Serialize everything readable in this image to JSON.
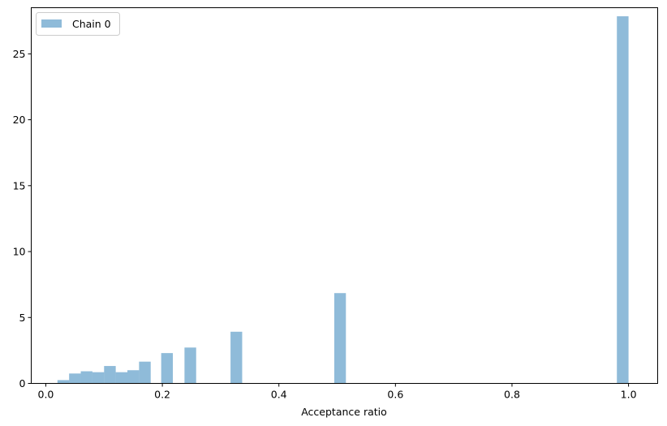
{
  "chart_data": {
    "type": "bar",
    "xlabel": "Acceptance ratio",
    "ylabel": "",
    "xlim": [
      -0.025,
      1.05
    ],
    "ylim": [
      0,
      28.5
    ],
    "xticks": [
      0.0,
      0.2,
      0.4,
      0.6,
      0.8,
      1.0
    ],
    "xtick_labels": [
      "0.0",
      "0.2",
      "0.4",
      "0.6",
      "0.8",
      "1.0"
    ],
    "yticks": [
      0,
      5,
      10,
      15,
      20,
      25
    ],
    "ytick_labels": [
      "0",
      "5",
      "10",
      "15",
      "20",
      "25"
    ],
    "grid": false,
    "legend": {
      "location": "upper-left"
    },
    "series": [
      {
        "name": "Chain 0",
        "color": "#1f77b4",
        "opacity": 0.5,
        "bins": [
          {
            "x0": 0.02,
            "x1": 0.04,
            "value": 0.25
          },
          {
            "x0": 0.04,
            "x1": 0.06,
            "value": 0.75
          },
          {
            "x0": 0.06,
            "x1": 0.08,
            "value": 0.92
          },
          {
            "x0": 0.08,
            "x1": 0.1,
            "value": 0.85
          },
          {
            "x0": 0.1,
            "x1": 0.12,
            "value": 1.32
          },
          {
            "x0": 0.12,
            "x1": 0.14,
            "value": 0.85
          },
          {
            "x0": 0.14,
            "x1": 0.16,
            "value": 1.0
          },
          {
            "x0": 0.16,
            "x1": 0.18,
            "value": 1.65
          },
          {
            "x0": 0.198,
            "x1": 0.218,
            "value": 2.3
          },
          {
            "x0": 0.238,
            "x1": 0.258,
            "value": 2.72
          },
          {
            "x0": 0.317,
            "x1": 0.337,
            "value": 3.92
          },
          {
            "x0": 0.495,
            "x1": 0.515,
            "value": 6.85
          },
          {
            "x0": 0.98,
            "x1": 1.0,
            "value": 27.85
          }
        ]
      }
    ]
  }
}
